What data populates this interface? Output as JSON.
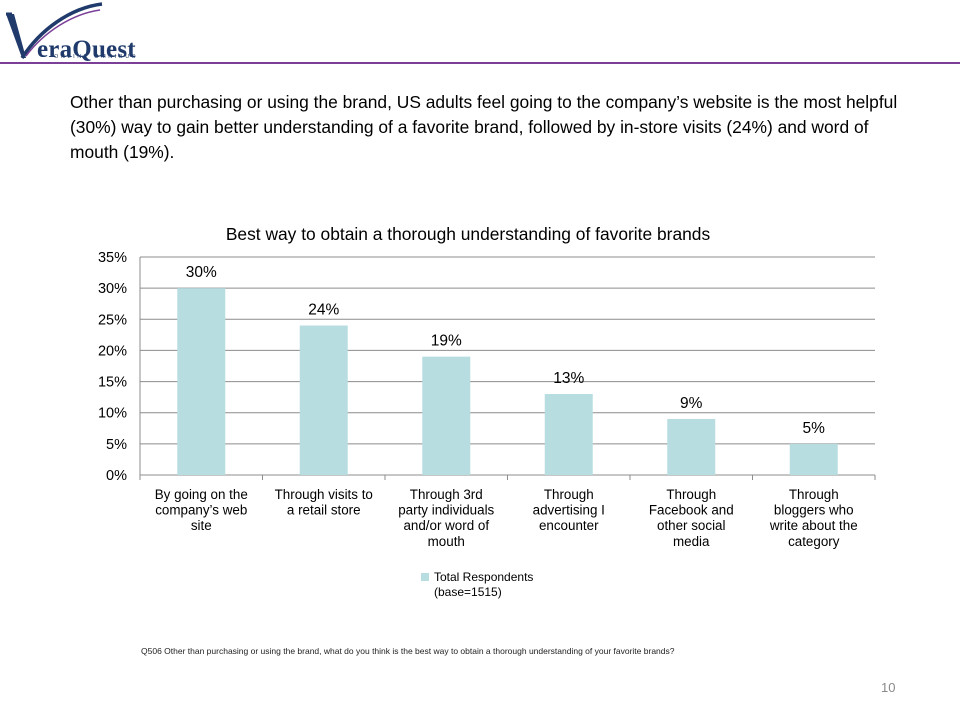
{
  "brand": {
    "name": "eraQuest",
    "tagline": "ONLINE OMNIBUS",
    "accent": "#7b3f98",
    "navy": "#1f3a6b"
  },
  "intro_text": "Other than purchasing or using the brand, US adults feel going to the company’s website is the most helpful (30%) way to gain better understanding of a favorite brand, followed by in-store visits (24%) and word of mouth (19%).",
  "chart_data": {
    "type": "bar",
    "title": "Best way to obtain a thorough understanding of favorite brands",
    "categories": [
      [
        "By going on the",
        "company’s web",
        "site"
      ],
      [
        "Through visits to",
        "a retail store"
      ],
      [
        "Through 3rd",
        "party individuals",
        "and/or word of",
        "mouth"
      ],
      [
        "Through",
        "advertising I",
        "encounter"
      ],
      [
        "Through",
        "Facebook and",
        "other social",
        "media"
      ],
      [
        "Through",
        "bloggers who",
        "write about the",
        "category"
      ]
    ],
    "series": [
      {
        "name": "Total Respondents (base=1515)",
        "legend_lines": [
          "Total Respondents",
          "(base=1515)"
        ],
        "values": [
          30,
          24,
          19,
          13,
          9,
          5
        ],
        "color": "#b7dde0"
      }
    ],
    "data_labels": [
      "30%",
      "24%",
      "19%",
      "13%",
      "9%",
      "5%"
    ],
    "ylim": [
      0,
      35
    ],
    "yticks": [
      "0%",
      "5%",
      "10%",
      "15%",
      "20%",
      "25%",
      "30%",
      "35%"
    ],
    "ytick_values": [
      0,
      5,
      10,
      15,
      20,
      25,
      30,
      35
    ],
    "grid": true,
    "legend": "bottom-center"
  },
  "footnote": "Q506  Other than purchasing or using the brand, what do you think is the best way to obtain a thorough understanding of your favorite brands?",
  "page_number": "10"
}
